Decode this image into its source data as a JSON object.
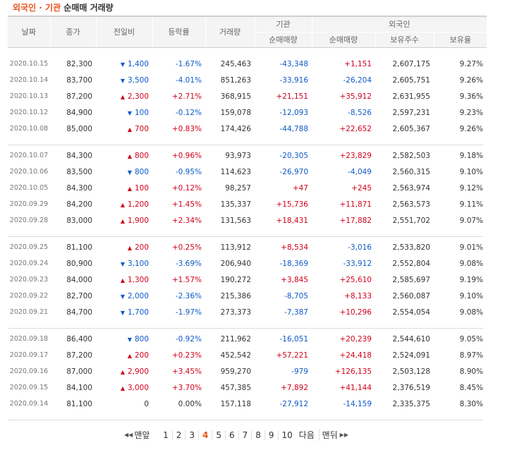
{
  "title": {
    "accent": "외국인 · 기관",
    "rest": " 순매매 거래량"
  },
  "headers": {
    "date": "날짜",
    "close": "종가",
    "change": "전일비",
    "rate": "등락률",
    "volume": "거래량",
    "institution": "기관",
    "foreign": "외국인",
    "inst_net": "순매매량",
    "foreign_net": "순매매량",
    "foreign_holdings": "보유주수",
    "foreign_ratio": "보유율"
  },
  "groups": [
    [
      {
        "date": "2020.10.15",
        "close": "82,300",
        "dir": "dn",
        "change": "1,400",
        "rate": "-1.67%",
        "volume": "245,463",
        "inst": "-43,348",
        "foreign": "+1,151",
        "holdings": "2,607,175",
        "ratio": "9.27%"
      },
      {
        "date": "2020.10.14",
        "close": "83,700",
        "dir": "dn",
        "change": "3,500",
        "rate": "-4.01%",
        "volume": "851,263",
        "inst": "-33,916",
        "foreign": "-26,204",
        "holdings": "2,605,751",
        "ratio": "9.26%"
      },
      {
        "date": "2020.10.13",
        "close": "87,200",
        "dir": "up",
        "change": "2,300",
        "rate": "+2.71%",
        "volume": "368,915",
        "inst": "+21,151",
        "foreign": "+35,912",
        "holdings": "2,631,955",
        "ratio": "9.36%"
      },
      {
        "date": "2020.10.12",
        "close": "84,900",
        "dir": "dn",
        "change": "100",
        "rate": "-0.12%",
        "volume": "159,078",
        "inst": "-12,093",
        "foreign": "-8,526",
        "holdings": "2,597,231",
        "ratio": "9.23%"
      },
      {
        "date": "2020.10.08",
        "close": "85,000",
        "dir": "up",
        "change": "700",
        "rate": "+0.83%",
        "volume": "174,426",
        "inst": "-44,788",
        "foreign": "+22,652",
        "holdings": "2,605,367",
        "ratio": "9.26%"
      }
    ],
    [
      {
        "date": "2020.10.07",
        "close": "84,300",
        "dir": "up",
        "change": "800",
        "rate": "+0.96%",
        "volume": "93,973",
        "inst": "-20,305",
        "foreign": "+23,829",
        "holdings": "2,582,503",
        "ratio": "9.18%"
      },
      {
        "date": "2020.10.06",
        "close": "83,500",
        "dir": "dn",
        "change": "800",
        "rate": "-0.95%",
        "volume": "114,623",
        "inst": "-26,970",
        "foreign": "-4,049",
        "holdings": "2,560,315",
        "ratio": "9.10%"
      },
      {
        "date": "2020.10.05",
        "close": "84,300",
        "dir": "up",
        "change": "100",
        "rate": "+0.12%",
        "volume": "98,257",
        "inst": "+47",
        "foreign": "+245",
        "holdings": "2,563,974",
        "ratio": "9.12%"
      },
      {
        "date": "2020.09.29",
        "close": "84,200",
        "dir": "up",
        "change": "1,200",
        "rate": "+1.45%",
        "volume": "135,337",
        "inst": "+15,736",
        "foreign": "+11,871",
        "holdings": "2,563,573",
        "ratio": "9.11%"
      },
      {
        "date": "2020.09.28",
        "close": "83,000",
        "dir": "up",
        "change": "1,900",
        "rate": "+2.34%",
        "volume": "131,563",
        "inst": "+18,431",
        "foreign": "+17,882",
        "holdings": "2,551,702",
        "ratio": "9.07%"
      }
    ],
    [
      {
        "date": "2020.09.25",
        "close": "81,100",
        "dir": "up",
        "change": "200",
        "rate": "+0.25%",
        "volume": "113,912",
        "inst": "+8,534",
        "foreign": "-3,016",
        "holdings": "2,533,820",
        "ratio": "9.01%"
      },
      {
        "date": "2020.09.24",
        "close": "80,900",
        "dir": "dn",
        "change": "3,100",
        "rate": "-3.69%",
        "volume": "206,940",
        "inst": "-18,369",
        "foreign": "-33,912",
        "holdings": "2,552,804",
        "ratio": "9.08%"
      },
      {
        "date": "2020.09.23",
        "close": "84,000",
        "dir": "up",
        "change": "1,300",
        "rate": "+1.57%",
        "volume": "190,272",
        "inst": "+3,845",
        "foreign": "+25,610",
        "holdings": "2,585,697",
        "ratio": "9.19%"
      },
      {
        "date": "2020.09.22",
        "close": "82,700",
        "dir": "dn",
        "change": "2,000",
        "rate": "-2.36%",
        "volume": "215,386",
        "inst": "-8,705",
        "foreign": "+8,133",
        "holdings": "2,560,087",
        "ratio": "9.10%"
      },
      {
        "date": "2020.09.21",
        "close": "84,700",
        "dir": "dn",
        "change": "1,700",
        "rate": "-1.97%",
        "volume": "273,373",
        "inst": "-7,387",
        "foreign": "+10,296",
        "holdings": "2,554,054",
        "ratio": "9.08%"
      }
    ],
    [
      {
        "date": "2020.09.18",
        "close": "86,400",
        "dir": "dn",
        "change": "800",
        "rate": "-0.92%",
        "volume": "211,962",
        "inst": "-16,051",
        "foreign": "+20,239",
        "holdings": "2,544,610",
        "ratio": "9.05%"
      },
      {
        "date": "2020.09.17",
        "close": "87,200",
        "dir": "up",
        "change": "200",
        "rate": "+0.23%",
        "volume": "452,542",
        "inst": "+57,221",
        "foreign": "+24,418",
        "holdings": "2,524,091",
        "ratio": "8.97%"
      },
      {
        "date": "2020.09.16",
        "close": "87,000",
        "dir": "up",
        "change": "2,900",
        "rate": "+3.45%",
        "volume": "959,270",
        "inst": "-979",
        "foreign": "+126,135",
        "holdings": "2,503,128",
        "ratio": "8.90%"
      },
      {
        "date": "2020.09.15",
        "close": "84,100",
        "dir": "up",
        "change": "3,000",
        "rate": "+3.70%",
        "volume": "457,385",
        "inst": "+7,892",
        "foreign": "+41,144",
        "holdings": "2,376,519",
        "ratio": "8.45%"
      },
      {
        "date": "2020.09.14",
        "close": "81,100",
        "dir": "flat",
        "change": "0",
        "rate": "0.00%",
        "volume": "157,118",
        "inst": "-27,912",
        "foreign": "-14,159",
        "holdings": "2,335,375",
        "ratio": "8.30%"
      }
    ]
  ],
  "pagination": {
    "first_label": "맨앞",
    "next_label": "다음",
    "last_label": "맨뒤",
    "pages": [
      "1",
      "2",
      "3",
      "4",
      "5",
      "6",
      "7",
      "8",
      "9",
      "10"
    ],
    "current": "4"
  },
  "colors": {
    "up": "#d0021b",
    "down": "#0e5ac8",
    "accent": "#e8541c"
  },
  "icons": {
    "up": "triangle-up-icon",
    "down": "triangle-down-icon",
    "first": "double-chevron-left-icon",
    "last": "double-chevron-right-icon"
  }
}
